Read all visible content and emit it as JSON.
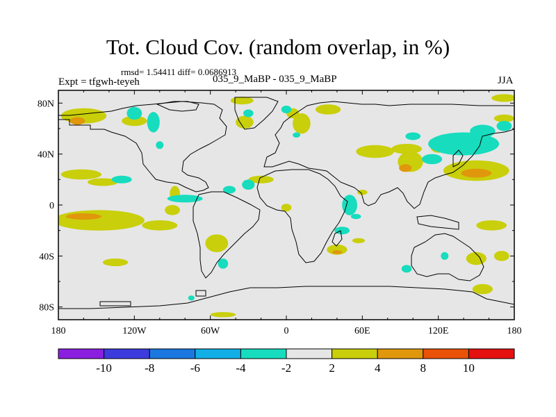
{
  "header": {
    "title": "Tot. Cloud Cov. (random overlap, in %)",
    "stats": "rmsd= 1.54411 diff= 0.0686913",
    "expt": "Expt = tfgwh-teyeh",
    "experiment_label": "035_9_MaBP - 035_9_MaBP",
    "season": "JJA"
  },
  "chart_data": {
    "type": "heatmap",
    "title": "Tot. Cloud Cov. (random overlap, in %)",
    "subtitle": "035_9_MaBP - 035_9_MaBP",
    "xlabel": "",
    "ylabel": "",
    "xlim": [
      -180,
      180
    ],
    "ylim": [
      -90,
      90
    ],
    "x_ticks": [
      -180,
      -120,
      -60,
      0,
      60,
      120,
      180
    ],
    "x_tick_labels": [
      "180",
      "120W",
      "60W",
      "0",
      "60E",
      "120E",
      "180"
    ],
    "y_ticks": [
      -80,
      -40,
      0,
      40,
      80
    ],
    "y_tick_labels": [
      "80S",
      "40S",
      "0",
      "40N",
      "80N"
    ],
    "colorbar": {
      "levels": [
        -10,
        -8,
        -6,
        -4,
        -2,
        2,
        4,
        8,
        10
      ],
      "level_labels": [
        "-10",
        "-8",
        "-6",
        "-4",
        "-2",
        "2",
        "4",
        "8",
        "10"
      ],
      "colors": [
        "#8b1fe0",
        "#3c3cde",
        "#1a78e0",
        "#12aee6",
        "#17dcbe",
        "#e6e6e6",
        "#c9cf0a",
        "#e0970c",
        "#ea5208",
        "#e51010"
      ]
    },
    "background_color": "#e6e6e6",
    "regions": [
      {
        "level": 2,
        "lon": -160,
        "lat": 70,
        "rx": 18,
        "ry": 6
      },
      {
        "level": 4,
        "lon": -165,
        "lat": 66,
        "rx": 6,
        "ry": 3
      },
      {
        "level": 2,
        "lon": -120,
        "lat": 66,
        "rx": 10,
        "ry": 4
      },
      {
        "level": 2,
        "lon": -162,
        "lat": 24,
        "rx": 16,
        "ry": 4
      },
      {
        "level": 2,
        "lon": -145,
        "lat": 18,
        "rx": 12,
        "ry": 3
      },
      {
        "level": 2,
        "lon": -148,
        "lat": -12,
        "rx": 36,
        "ry": 8
      },
      {
        "level": 4,
        "lon": -160,
        "lat": -9,
        "rx": 14,
        "ry": 2.5
      },
      {
        "level": 2,
        "lon": -100,
        "lat": -16,
        "rx": 14,
        "ry": 4
      },
      {
        "level": 2,
        "lon": -135,
        "lat": -45,
        "rx": 10,
        "ry": 3
      },
      {
        "level": 2,
        "lon": -90,
        "lat": -4,
        "rx": 6,
        "ry": 4
      },
      {
        "level": 2,
        "lon": -88,
        "lat": 9,
        "rx": 4,
        "ry": 6
      },
      {
        "level": 2,
        "lon": -35,
        "lat": 82,
        "rx": 9,
        "ry": 3
      },
      {
        "level": 2,
        "lon": -33,
        "lat": 65,
        "rx": 7,
        "ry": 5
      },
      {
        "level": 2,
        "lon": -20,
        "lat": 20,
        "rx": 10,
        "ry": 3
      },
      {
        "level": 2,
        "lon": -55,
        "lat": -30,
        "rx": 9,
        "ry": 7
      },
      {
        "level": 2,
        "lon": 0,
        "lat": -2,
        "rx": 4,
        "ry": 3
      },
      {
        "level": 2,
        "lon": 12,
        "lat": 64,
        "rx": 7,
        "ry": 8
      },
      {
        "level": 2,
        "lon": 5,
        "lat": 72,
        "rx": 5,
        "ry": 4
      },
      {
        "level": 2,
        "lon": 33,
        "lat": 75,
        "rx": 10,
        "ry": 4
      },
      {
        "level": 2,
        "lon": 60,
        "lat": 10,
        "rx": 4,
        "ry": 2
      },
      {
        "level": 2,
        "lon": 40,
        "lat": -35,
        "rx": 8,
        "ry": 4
      },
      {
        "level": 4,
        "lon": 40,
        "lat": -37,
        "rx": 4,
        "ry": 1.5
      },
      {
        "level": 2,
        "lon": 57,
        "lat": -28,
        "rx": 5,
        "ry": 2
      },
      {
        "level": 2,
        "lon": 70,
        "lat": 42,
        "rx": 15,
        "ry": 5
      },
      {
        "level": 2,
        "lon": 95,
        "lat": 44,
        "rx": 12,
        "ry": 4
      },
      {
        "level": 2,
        "lon": 98,
        "lat": 34,
        "rx": 10,
        "ry": 8
      },
      {
        "level": 4,
        "lon": 94,
        "lat": 29,
        "rx": 5,
        "ry": 3
      },
      {
        "level": 2,
        "lon": 120,
        "lat": 45,
        "rx": 6,
        "ry": 4
      },
      {
        "level": 2,
        "lon": 150,
        "lat": 27,
        "rx": 26,
        "ry": 8
      },
      {
        "level": 4,
        "lon": 150,
        "lat": 25,
        "rx": 12,
        "ry": 3.5
      },
      {
        "level": 2,
        "lon": 172,
        "lat": 84,
        "rx": 10,
        "ry": 3
      },
      {
        "level": 2,
        "lon": 172,
        "lat": 68,
        "rx": 8,
        "ry": 3
      },
      {
        "level": 2,
        "lon": 162,
        "lat": -16,
        "rx": 12,
        "ry": 4
      },
      {
        "level": 2,
        "lon": 150,
        "lat": -42,
        "rx": 8,
        "ry": 5
      },
      {
        "level": 2,
        "lon": 155,
        "lat": -66,
        "rx": 8,
        "ry": 4
      },
      {
        "level": 2,
        "lon": 170,
        "lat": -40,
        "rx": 6,
        "ry": 4
      },
      {
        "level": 2,
        "lon": -50,
        "lat": -86,
        "rx": 10,
        "ry": 2
      },
      {
        "level": -2,
        "lon": -120,
        "lat": 72,
        "rx": 6,
        "ry": 5
      },
      {
        "level": -2,
        "lon": -105,
        "lat": 65,
        "rx": 5,
        "ry": 8
      },
      {
        "level": -2,
        "lon": -100,
        "lat": 47,
        "rx": 3,
        "ry": 3
      },
      {
        "level": -2,
        "lon": -130,
        "lat": 20,
        "rx": 8,
        "ry": 3
      },
      {
        "level": -2,
        "lon": -80,
        "lat": 5,
        "rx": 14,
        "ry": 3
      },
      {
        "level": -2,
        "lon": -30,
        "lat": 72,
        "rx": 4,
        "ry": 3
      },
      {
        "level": -2,
        "lon": -30,
        "lat": 16,
        "rx": 5,
        "ry": 4
      },
      {
        "level": -2,
        "lon": -45,
        "lat": 12,
        "rx": 5,
        "ry": 3
      },
      {
        "level": -2,
        "lon": -50,
        "lat": -46,
        "rx": 4,
        "ry": 4
      },
      {
        "level": -2,
        "lon": 0,
        "lat": 75,
        "rx": 4,
        "ry": 3
      },
      {
        "level": -2,
        "lon": 8,
        "lat": 55,
        "rx": 3,
        "ry": 2
      },
      {
        "level": -2,
        "lon": 55,
        "lat": -9,
        "rx": 4,
        "ry": 2
      },
      {
        "level": -2,
        "lon": 44,
        "lat": -20,
        "rx": 6,
        "ry": 3
      },
      {
        "level": -2,
        "lon": 50,
        "lat": 0,
        "rx": 6,
        "ry": 8
      },
      {
        "level": -2,
        "lon": 100,
        "lat": 54,
        "rx": 6,
        "ry": 3
      },
      {
        "level": -2,
        "lon": 115,
        "lat": 36,
        "rx": 8,
        "ry": 4
      },
      {
        "level": -2,
        "lon": 140,
        "lat": 48,
        "rx": 28,
        "ry": 9
      },
      {
        "level": -2,
        "lon": 155,
        "lat": 58,
        "rx": 10,
        "ry": 5
      },
      {
        "level": -2,
        "lon": 172,
        "lat": 62,
        "rx": 6,
        "ry": 4
      },
      {
        "level": -2,
        "lon": 95,
        "lat": -50,
        "rx": 4,
        "ry": 3
      },
      {
        "level": -2,
        "lon": 125,
        "lat": -40,
        "rx": 3,
        "ry": 3
      },
      {
        "level": -2,
        "lon": -75,
        "lat": -73,
        "rx": 2.5,
        "ry": 2
      }
    ]
  }
}
